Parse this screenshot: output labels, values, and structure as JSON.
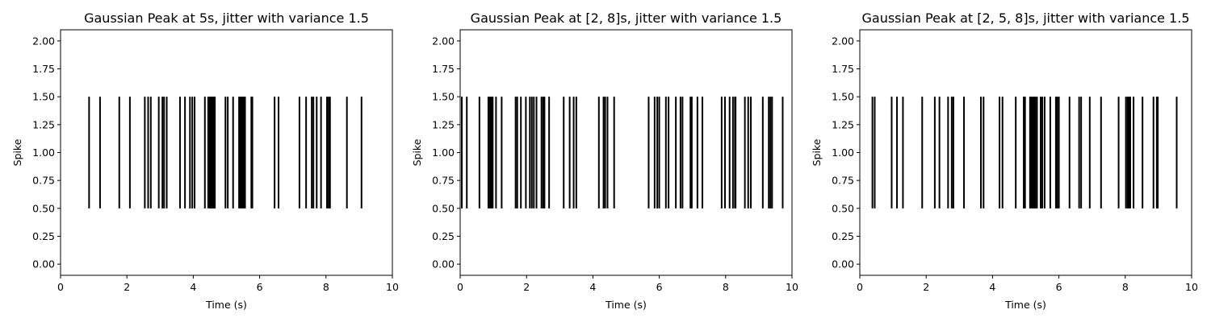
{
  "chart_data": [
    {
      "type": "eventplot",
      "title": "Gaussian Peak at 5s, jitter with variance 1.5",
      "xlabel": "Time (s)",
      "ylabel": "Spike",
      "xlim": [
        0,
        10
      ],
      "ylim": [
        -0.1,
        2.1
      ],
      "xticks": [
        0,
        2,
        4,
        6,
        8,
        10
      ],
      "yticks": [
        0.0,
        0.25,
        0.5,
        0.75,
        1.0,
        1.25,
        1.5,
        1.75,
        2.0
      ],
      "xtick_labels": [
        "0",
        "2",
        "4",
        "6",
        "8",
        "10"
      ],
      "ytick_labels": [
        "0.00",
        "0.25",
        "0.50",
        "0.75",
        "1.00",
        "1.25",
        "1.50",
        "1.75",
        "2.00"
      ],
      "event_line": {
        "lineoffset": 1.0,
        "linelength": 1.0
      },
      "color": "#000000",
      "events": [
        0.86,
        1.19,
        1.77,
        2.09,
        2.54,
        2.64,
        2.72,
        2.96,
        3.07,
        3.12,
        3.2,
        3.6,
        3.75,
        3.9,
        3.97,
        4.04,
        4.35,
        4.45,
        4.5,
        4.53,
        4.56,
        4.59,
        4.62,
        4.65,
        4.97,
        5.04,
        5.2,
        5.38,
        5.42,
        5.45,
        5.48,
        5.52,
        5.56,
        5.75,
        5.78,
        6.45,
        6.57,
        7.2,
        7.4,
        7.57,
        7.62,
        7.72,
        7.85,
        8.03,
        8.08,
        8.12,
        8.63,
        9.07
      ]
    },
    {
      "type": "eventplot",
      "title": "Gaussian Peak at [2, 8]s, jitter with variance 1.5",
      "xlabel": "Time (s)",
      "ylabel": "Spike",
      "xlim": [
        0,
        10
      ],
      "ylim": [
        -0.1,
        2.1
      ],
      "xticks": [
        0,
        2,
        4,
        6,
        8,
        10
      ],
      "yticks": [
        0.0,
        0.25,
        0.5,
        0.75,
        1.0,
        1.25,
        1.5,
        1.75,
        2.0
      ],
      "xtick_labels": [
        "0",
        "2",
        "4",
        "6",
        "8",
        "10"
      ],
      "ytick_labels": [
        "0.00",
        "0.25",
        "0.50",
        "0.75",
        "1.00",
        "1.25",
        "1.50",
        "1.75",
        "2.00"
      ],
      "event_line": {
        "lineoffset": 1.0,
        "linelength": 1.0
      },
      "color": "#000000",
      "events": [
        0.05,
        0.2,
        0.58,
        0.85,
        0.9,
        0.94,
        0.98,
        1.08,
        1.25,
        1.67,
        1.72,
        1.83,
        1.98,
        2.1,
        2.16,
        2.22,
        2.3,
        2.45,
        2.5,
        2.54,
        2.68,
        3.12,
        3.3,
        3.42,
        3.5,
        4.18,
        4.32,
        4.37,
        4.44,
        4.64,
        5.68,
        5.86,
        5.94,
        6.0,
        6.2,
        6.28,
        6.5,
        6.64,
        6.7,
        6.94,
        6.98,
        7.15,
        7.3,
        7.88,
        7.98,
        8.12,
        8.22,
        8.28,
        8.3,
        8.58,
        8.68,
        8.76,
        9.12,
        9.3,
        9.35,
        9.4,
        9.72
      ]
    },
    {
      "type": "eventplot",
      "title": "Gaussian Peak at [2, 5, 8]s, jitter with variance 1.5",
      "xlabel": "Time (s)",
      "ylabel": "Spike",
      "xlim": [
        0,
        10
      ],
      "ylim": [
        -0.1,
        2.1
      ],
      "xticks": [
        0,
        2,
        4,
        6,
        8,
        10
      ],
      "yticks": [
        0.0,
        0.25,
        0.5,
        0.75,
        1.0,
        1.25,
        1.5,
        1.75,
        2.0
      ],
      "xtick_labels": [
        "0",
        "2",
        "4",
        "6",
        "8",
        "10"
      ],
      "ytick_labels": [
        "0.00",
        "0.25",
        "0.50",
        "0.75",
        "1.00",
        "1.25",
        "1.50",
        "1.75",
        "2.00"
      ],
      "event_line": {
        "lineoffset": 1.0,
        "linelength": 1.0
      },
      "color": "#000000",
      "events": [
        0.38,
        0.45,
        0.96,
        1.12,
        1.3,
        1.88,
        2.26,
        2.4,
        2.66,
        2.77,
        2.82,
        3.14,
        3.65,
        3.73,
        4.21,
        4.3,
        4.7,
        4.94,
        4.98,
        5.13,
        5.17,
        5.21,
        5.25,
        5.29,
        5.34,
        5.45,
        5.5,
        5.57,
        5.74,
        5.91,
        5.95,
        6.0,
        6.32,
        6.61,
        6.67,
        6.93,
        7.27,
        7.8,
        8.02,
        8.07,
        8.11,
        8.15,
        8.25,
        8.52,
        8.85,
        8.95,
        8.98,
        9.55
      ]
    }
  ]
}
